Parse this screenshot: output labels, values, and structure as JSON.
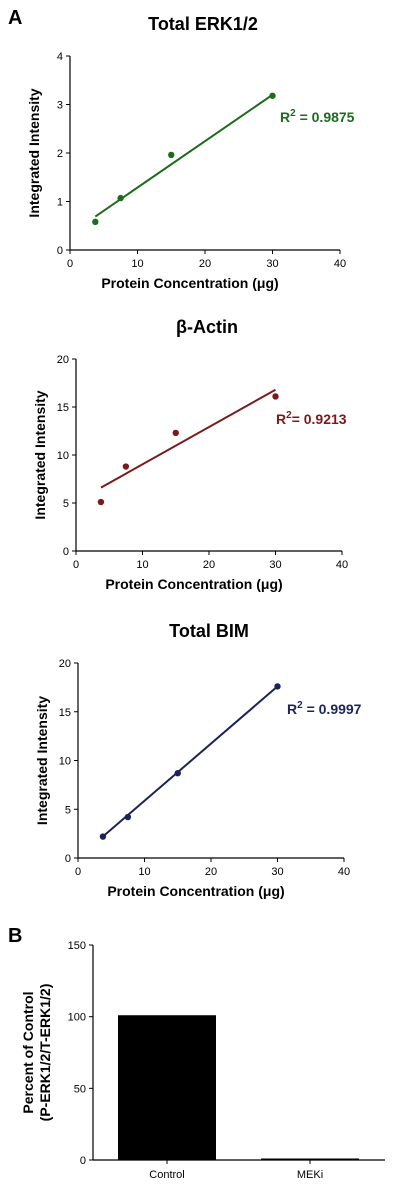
{
  "panels": {
    "a": "A",
    "b": "B"
  },
  "chart_data": [
    {
      "type": "scatter",
      "title": "Total ERK1/2",
      "xlabel": "Protein Concentration (μg)",
      "ylabel": "Integrated Intensity",
      "xlim": [
        0,
        40
      ],
      "ylim": [
        0,
        4
      ],
      "xticks": [
        "0",
        "10",
        "20",
        "30",
        "40"
      ],
      "yticks": [
        "0",
        "1",
        "2",
        "3",
        "4"
      ],
      "color": "#1e6b1e",
      "points": [
        {
          "x": 3.75,
          "y": 0.58
        },
        {
          "x": 7.5,
          "y": 1.07
        },
        {
          "x": 15,
          "y": 1.96
        },
        {
          "x": 30,
          "y": 3.18
        }
      ],
      "fit": {
        "x0": 3.75,
        "y0": 0.69,
        "x1": 30,
        "y1": 3.2
      },
      "r2_label": "R",
      "r2_value": " = 0.9875"
    },
    {
      "type": "scatter",
      "title": "β-Actin",
      "xlabel": "Protein Concentration (μg)",
      "ylabel": "Integrated Intensity",
      "xlim": [
        0,
        40
      ],
      "ylim": [
        0,
        20
      ],
      "xticks": [
        "0",
        "10",
        "20",
        "30",
        "40"
      ],
      "yticks": [
        "0",
        "5",
        "10",
        "15",
        "20"
      ],
      "color": "#7a1a1a",
      "points": [
        {
          "x": 3.75,
          "y": 5.1
        },
        {
          "x": 7.5,
          "y": 8.8
        },
        {
          "x": 15,
          "y": 12.3
        },
        {
          "x": 30,
          "y": 16.1
        }
      ],
      "fit": {
        "x0": 3.75,
        "y0": 6.6,
        "x1": 30,
        "y1": 16.8
      },
      "r2_label": "R",
      "r2_value": "= 0.9213"
    },
    {
      "type": "scatter",
      "title": "Total BIM",
      "xlabel": "Protein Concentration (μg)",
      "ylabel": "Integrated Intensity",
      "xlim": [
        0,
        40
      ],
      "ylim": [
        0,
        20
      ],
      "xticks": [
        "0",
        "10",
        "20",
        "30",
        "40"
      ],
      "yticks": [
        "0",
        "5",
        "10",
        "15",
        "20"
      ],
      "color": "#1c2457",
      "points": [
        {
          "x": 3.75,
          "y": 2.2
        },
        {
          "x": 7.5,
          "y": 4.2
        },
        {
          "x": 15,
          "y": 8.7
        },
        {
          "x": 30,
          "y": 17.6
        }
      ],
      "fit": {
        "x0": 3.75,
        "y0": 2.2,
        "x1": 30,
        "y1": 17.6
      },
      "r2_label": "R",
      "r2_value": " = 0.9997"
    },
    {
      "type": "bar",
      "categories": [
        "Control",
        "MEKi"
      ],
      "values": [
        101,
        1
      ],
      "ylabel": "Percent of Control",
      "ylabel2": "(P-ERK1/2/T-ERK1/2)",
      "ylim": [
        0,
        150
      ],
      "yticks": [
        "0",
        "50",
        "100",
        "150"
      ],
      "color": "#000000"
    }
  ]
}
